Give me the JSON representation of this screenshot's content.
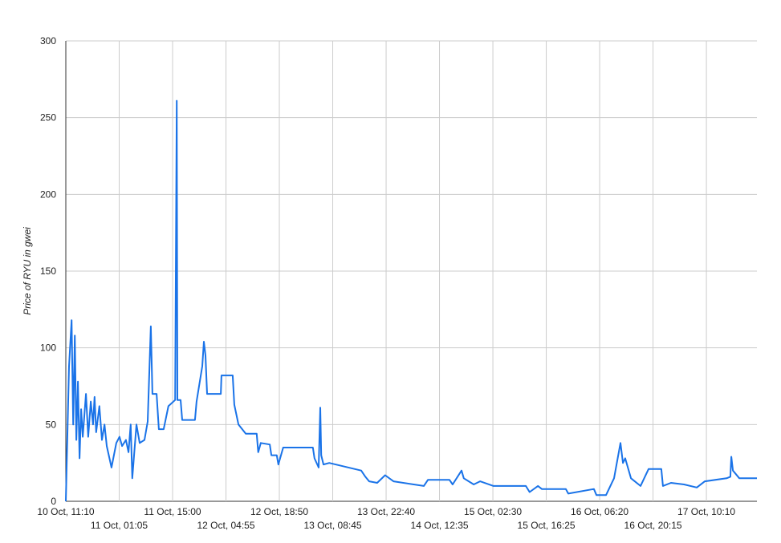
{
  "chart_data": {
    "type": "line",
    "y_label": "Price of RYU in gwei",
    "x": [
      "10 Oct, 11:10",
      "10 Oct, 12:00",
      "10 Oct, 12:40",
      "10 Oct, 13:05",
      "10 Oct, 13:30",
      "10 Oct, 13:55",
      "10 Oct, 14:20",
      "10 Oct, 14:45",
      "10 Oct, 15:10",
      "10 Oct, 15:35",
      "10 Oct, 16:25",
      "10 Oct, 17:00",
      "10 Oct, 17:40",
      "10 Oct, 18:15",
      "10 Oct, 18:40",
      "10 Oct, 19:05",
      "10 Oct, 19:55",
      "10 Oct, 20:35",
      "10 Oct, 21:15",
      "10 Oct, 21:50",
      "10 Oct, 23:05",
      "11 Oct, 00:20",
      "11 Oct, 01:10",
      "11 Oct, 01:50",
      "11 Oct, 02:50",
      "11 Oct, 03:30",
      "11 Oct, 04:05",
      "11 Oct, 04:30",
      "11 Oct, 05:35",
      "11 Oct, 06:25",
      "11 Oct, 07:40",
      "11 Oct, 08:30",
      "11 Oct, 09:20",
      "11 Oct, 09:45",
      "11 Oct, 10:50",
      "11 Oct, 11:25",
      "11 Oct, 12:40",
      "11 Oct, 13:55",
      "11 Oct, 15:40",
      "11 Oct, 16:05",
      "11 Oct, 16:15",
      "11 Oct, 17:05",
      "11 Oct, 17:30",
      "11 Oct, 20:50",
      "11 Oct, 21:15",
      "11 Oct, 22:45",
      "11 Oct, 23:10",
      "11 Oct, 23:35",
      "12 Oct, 00:00",
      "12 Oct, 03:35",
      "12 Oct, 03:45",
      "12 Oct, 06:40",
      "12 Oct, 07:05",
      "12 Oct, 08:10",
      "12 Oct, 10:05",
      "12 Oct, 12:55",
      "12 Oct, 13:20",
      "12 Oct, 14:00",
      "12 Oct, 16:20",
      "12 Oct, 16:45",
      "12 Oct, 18:10",
      "12 Oct, 18:35",
      "12 Oct, 19:50",
      "13 Oct, 03:35",
      "13 Oct, 04:00",
      "13 Oct, 05:05",
      "13 Oct, 05:30",
      "13 Oct, 05:45",
      "13 Oct, 06:20",
      "13 Oct, 07:50",
      "13 Oct, 16:10",
      "13 Oct, 17:15",
      "13 Oct, 18:15",
      "13 Oct, 20:20",
      "13 Oct, 22:25",
      "14 Oct, 00:35",
      "14 Oct, 08:30",
      "14 Oct, 09:35",
      "14 Oct, 15:10",
      "14 Oct, 16:00",
      "14 Oct, 18:20",
      "14 Oct, 18:55",
      "14 Oct, 21:30",
      "14 Oct, 23:10",
      "15 Oct, 02:40",
      "15 Oct, 11:05",
      "15 Oct, 12:05",
      "15 Oct, 14:15",
      "15 Oct, 15:15",
      "15 Oct, 21:30",
      "15 Oct, 22:10",
      "16 Oct, 04:50",
      "16 Oct, 05:30",
      "16 Oct, 08:00",
      "16 Oct, 10:05",
      "16 Oct, 11:45",
      "16 Oct, 12:25",
      "16 Oct, 13:00",
      "16 Oct, 14:30",
      "16 Oct, 17:00",
      "16 Oct, 19:05",
      "16 Oct, 22:25",
      "16 Oct, 22:50",
      "17 Oct, 00:55",
      "17 Oct, 04:20",
      "17 Oct, 07:40",
      "17 Oct, 09:45",
      "17 Oct, 15:25",
      "17 Oct, 16:25",
      "17 Oct, 16:40",
      "17 Oct, 17:05",
      "17 Oct, 18:45",
      "17 Oct, 23:20"
    ],
    "series": [
      {
        "color": "#1a73e8",
        "values": [
          0,
          88,
          118,
          50,
          108,
          40,
          78,
          28,
          60,
          42,
          70,
          42,
          65,
          50,
          68,
          45,
          62,
          40,
          50,
          36,
          22,
          38,
          42,
          36,
          40,
          32,
          50,
          15,
          50,
          38,
          40,
          52,
          114,
          70,
          70,
          47,
          47,
          62,
          66,
          261,
          66,
          66,
          53,
          53,
          65,
          88,
          104,
          95,
          70,
          70,
          82,
          82,
          63,
          50,
          44,
          44,
          32,
          38,
          37,
          30,
          30,
          24,
          35,
          35,
          28,
          22,
          61,
          30,
          24,
          25,
          20,
          16,
          13,
          12,
          17,
          13,
          10,
          14,
          14,
          11,
          20,
          15,
          11,
          13,
          10,
          10,
          6,
          10,
          8,
          8,
          5,
          8,
          4,
          4,
          15,
          38,
          25,
          28,
          15,
          10,
          21,
          21,
          10,
          12,
          11,
          9,
          13,
          15,
          16,
          29,
          20,
          15,
          15
        ]
      }
    ],
    "xlim": [
      "10 Oct, 11:10",
      "17 Oct, 23:20"
    ],
    "xticks": [
      "10 Oct, 11:10",
      "11 Oct, 01:05",
      "11 Oct, 15:00",
      "12 Oct, 04:55",
      "12 Oct, 18:50",
      "13 Oct, 08:45",
      "13 Oct, 22:40",
      "14 Oct, 12:35",
      "15 Oct, 02:30",
      "15 Oct, 16:25",
      "16 Oct, 06:20",
      "16 Oct, 20:15",
      "17 Oct, 10:10"
    ],
    "ylim": [
      0,
      300
    ],
    "yticks": [
      0,
      50,
      100,
      150,
      200,
      250,
      300
    ],
    "grid": true
  }
}
